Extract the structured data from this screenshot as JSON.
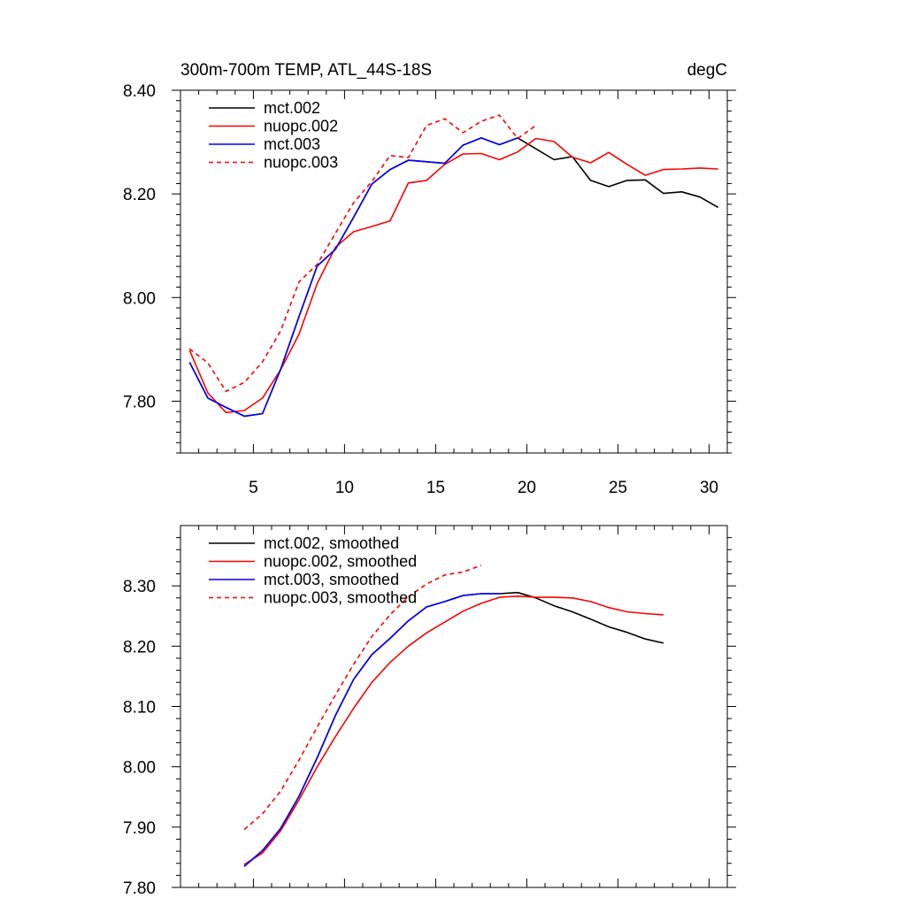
{
  "chart_data": [
    {
      "type": "line",
      "title": "300m-700m TEMP, ATL_44S-18S",
      "units": "degC",
      "xlim": [
        1,
        31
      ],
      "ylim": [
        7.7,
        8.4
      ],
      "xticks": [
        5,
        10,
        15,
        20,
        25,
        30
      ],
      "xtick_labels": [
        "5",
        "10",
        "15",
        "20",
        "25",
        "30"
      ],
      "xminor": [
        1,
        2,
        3,
        4,
        6,
        7,
        8,
        9,
        11,
        12,
        13,
        14,
        16,
        17,
        18,
        19,
        21,
        22,
        23,
        24,
        26,
        27,
        28,
        29,
        31
      ],
      "yticks": [
        7.8,
        8.0,
        8.2,
        8.4
      ],
      "ytick_labels": [
        "7.80",
        "8.00",
        "8.20",
        "8.40"
      ],
      "yminor": [
        7.7,
        7.72,
        7.74,
        7.76,
        7.78,
        7.82,
        7.84,
        7.86,
        7.88,
        7.9,
        7.92,
        7.94,
        7.96,
        7.98,
        8.02,
        8.04,
        8.06,
        8.08,
        8.1,
        8.12,
        8.14,
        8.16,
        8.18,
        8.22,
        8.24,
        8.26,
        8.28,
        8.3,
        8.32,
        8.34,
        8.36,
        8.38
      ],
      "legend_placement": "top-left",
      "series": [
        {
          "name": "mct.002",
          "color": "#000000",
          "dash": false,
          "x": [
            1.5,
            2.5,
            3.5,
            4.5,
            5.5,
            6.5,
            7.5,
            8.5,
            9.5,
            10.5,
            11.5,
            12.5,
            13.5,
            14.5,
            15.5,
            16.5,
            17.5,
            18.5,
            19.5,
            20.5,
            21.5,
            22.5,
            23.5,
            24.5,
            25.5,
            26.5,
            27.5,
            28.5,
            29.5,
            30.5
          ],
          "y": [
            7.875,
            7.806,
            7.788,
            7.771,
            7.776,
            7.862,
            7.963,
            8.061,
            8.093,
            8.155,
            8.219,
            8.247,
            8.265,
            8.262,
            8.259,
            8.294,
            8.308,
            8.295,
            8.308,
            8.287,
            8.266,
            8.272,
            8.226,
            8.214,
            8.226,
            8.227,
            8.201,
            8.204,
            8.194,
            8.174
          ]
        },
        {
          "name": "nuopc.002",
          "color": "#ff0000",
          "dash": false,
          "x": [
            1.5,
            2.5,
            3.5,
            4.5,
            5.5,
            6.5,
            7.5,
            8.5,
            9.5,
            10.5,
            11.5,
            12.5,
            13.5,
            14.5,
            15.5,
            16.5,
            17.5,
            18.5,
            19.5,
            20.5,
            21.5,
            22.5,
            23.5,
            24.5,
            25.5,
            26.5,
            27.5,
            28.5,
            29.5,
            30.5
          ],
          "y": [
            7.898,
            7.816,
            7.778,
            7.782,
            7.806,
            7.861,
            7.929,
            8.027,
            8.097,
            8.127,
            8.137,
            8.148,
            8.221,
            8.226,
            8.257,
            8.277,
            8.278,
            8.266,
            8.281,
            8.307,
            8.301,
            8.271,
            8.26,
            8.28,
            8.257,
            8.236,
            8.247,
            8.248,
            8.25,
            8.248
          ]
        },
        {
          "name": "mct.003",
          "color": "#0000ff",
          "dash": false,
          "x": [
            1.5,
            2.5,
            3.5,
            4.5,
            5.5,
            6.5,
            7.5,
            8.5,
            9.5,
            10.5,
            11.5,
            12.5,
            13.5,
            14.5,
            15.5,
            16.5,
            17.5,
            18.5,
            19.5
          ],
          "y": [
            7.875,
            7.806,
            7.788,
            7.771,
            7.776,
            7.862,
            7.963,
            8.061,
            8.093,
            8.155,
            8.219,
            8.247,
            8.265,
            8.262,
            8.259,
            8.294,
            8.308,
            8.295,
            8.308
          ]
        },
        {
          "name": "nuopc.003",
          "color": "#ff0000",
          "dash": true,
          "x": [
            1.5,
            2.5,
            3.5,
            4.5,
            5.5,
            6.5,
            7.5,
            8.5,
            9.5,
            10.5,
            11.5,
            12.5,
            13.5,
            14.5,
            15.5,
            16.5,
            17.5,
            18.5,
            19.5,
            20.5
          ],
          "y": [
            7.901,
            7.874,
            7.819,
            7.836,
            7.876,
            7.936,
            8.03,
            8.064,
            8.124,
            8.183,
            8.224,
            8.274,
            8.27,
            8.332,
            8.345,
            8.318,
            8.34,
            8.352,
            8.307,
            8.332
          ]
        }
      ]
    },
    {
      "type": "line",
      "xlim": [
        1,
        31
      ],
      "ylim": [
        7.8,
        8.4
      ],
      "xticks": [
        5,
        10,
        15,
        20,
        25,
        30
      ],
      "xminor": [
        1,
        2,
        3,
        4,
        6,
        7,
        8,
        9,
        11,
        12,
        13,
        14,
        16,
        17,
        18,
        19,
        21,
        22,
        23,
        24,
        26,
        27,
        28,
        29,
        31
      ],
      "yticks": [
        7.8,
        7.9,
        8.0,
        8.1,
        8.2,
        8.3
      ],
      "ytick_labels": [
        "7.80",
        "7.90",
        "8.00",
        "8.10",
        "8.20",
        "8.30"
      ],
      "yminor": [
        7.82,
        7.84,
        7.86,
        7.88,
        7.92,
        7.94,
        7.96,
        7.98,
        8.02,
        8.04,
        8.06,
        8.08,
        8.12,
        8.14,
        8.16,
        8.18,
        8.22,
        8.24,
        8.26,
        8.28,
        8.32,
        8.34,
        8.36,
        8.38
      ],
      "legend_placement": "top-left",
      "series": [
        {
          "name": "mct.002, smoothed",
          "color": "#000000",
          "dash": false,
          "x": [
            4.5,
            5.5,
            6.5,
            7.5,
            8.5,
            9.5,
            10.5,
            11.5,
            12.5,
            13.5,
            14.5,
            15.5,
            16.5,
            17.5,
            18.5,
            19.5,
            20.5,
            21.5,
            22.5,
            23.5,
            24.5,
            25.5,
            26.5,
            27.5
          ],
          "y": [
            7.835,
            7.861,
            7.898,
            7.951,
            8.015,
            8.085,
            8.145,
            8.186,
            8.213,
            8.242,
            8.265,
            8.274,
            8.284,
            8.287,
            8.287,
            8.289,
            8.28,
            8.267,
            8.257,
            8.245,
            8.232,
            8.223,
            8.212,
            8.205
          ]
        },
        {
          "name": "nuopc.002, smoothed",
          "color": "#ff0000",
          "dash": false,
          "x": [
            4.5,
            5.5,
            6.5,
            7.5,
            8.5,
            9.5,
            10.5,
            11.5,
            12.5,
            13.5,
            14.5,
            15.5,
            16.5,
            17.5,
            18.5,
            19.5,
            20.5,
            21.5,
            22.5,
            23.5,
            24.5,
            25.5,
            26.5,
            27.5
          ],
          "y": [
            7.838,
            7.857,
            7.894,
            7.945,
            8.0,
            8.05,
            8.097,
            8.14,
            8.173,
            8.2,
            8.222,
            8.24,
            8.258,
            8.271,
            8.281,
            8.283,
            8.281,
            8.281,
            8.28,
            8.274,
            8.264,
            8.257,
            8.254,
            8.252
          ]
        },
        {
          "name": "mct.003, smoothed",
          "color": "#0000ff",
          "dash": false,
          "x": [
            4.5,
            5.5,
            6.5,
            7.5,
            8.5,
            9.5,
            10.5,
            11.5,
            12.5,
            13.5,
            14.5,
            15.5,
            16.5,
            17.5,
            18.5
          ],
          "y": [
            7.835,
            7.861,
            7.898,
            7.951,
            8.015,
            8.085,
            8.145,
            8.186,
            8.213,
            8.242,
            8.265,
            8.274,
            8.284,
            8.287,
            8.287
          ]
        },
        {
          "name": "nuopc.003, smoothed",
          "color": "#ff0000",
          "dash": true,
          "x": [
            4.5,
            5.5,
            6.5,
            7.5,
            8.5,
            9.5,
            10.5,
            11.5,
            12.5,
            13.5,
            14.5,
            15.5,
            16.5,
            17.5
          ],
          "y": [
            7.896,
            7.922,
            7.96,
            8.011,
            8.066,
            8.119,
            8.17,
            8.216,
            8.252,
            8.282,
            8.303,
            8.318,
            8.323,
            8.334
          ]
        }
      ]
    }
  ]
}
